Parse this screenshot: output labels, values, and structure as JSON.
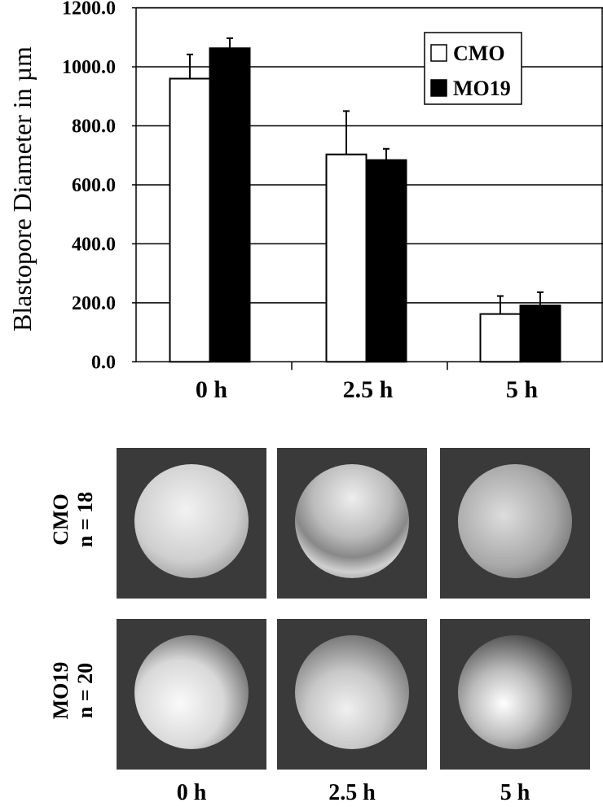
{
  "chart_data": {
    "type": "bar",
    "title": "",
    "xlabel": "",
    "ylabel": "Blastopore Diameter in µm",
    "ylim": [
      0,
      1200
    ],
    "yticks": [
      "0.0",
      "200.0",
      "400.0",
      "600.0",
      "800.0",
      "1000.0",
      "1200.0"
    ],
    "grid": true,
    "legend_position": "top-right",
    "categories": [
      "0 h",
      "2.5 h",
      "5 h"
    ],
    "series": [
      {
        "name": "CMO",
        "color": "#ffffff",
        "values": [
          960,
          703,
          162
        ],
        "error_upper": [
          1042,
          850,
          223
        ]
      },
      {
        "name": "MO19",
        "color": "#000000",
        "values": [
          1063,
          684,
          191
        ],
        "error_upper": [
          1097,
          722,
          236
        ]
      }
    ]
  },
  "panels": {
    "rows": [
      {
        "label": "CMO",
        "n": "n = 18"
      },
      {
        "label": "MO19",
        "n": "n = 20"
      }
    ],
    "columns": [
      "0 h",
      "2.5 h",
      "5 h"
    ]
  }
}
